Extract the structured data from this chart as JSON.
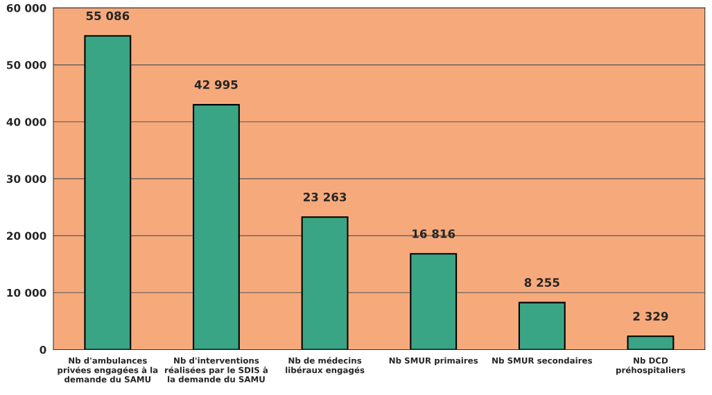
{
  "chart_data": {
    "type": "bar",
    "categories": [
      "Nb d'ambulances\nprivées engagées à la\ndemande du SAMU",
      "Nb d'interventions\nréalisées par le SDIS à\nla demande du SAMU",
      "Nb de médecins\nlibéraux engagés",
      "Nb SMUR primaires",
      "Nb SMUR secondaires",
      "Nb DCD\npréhospitaliers"
    ],
    "values": [
      55086,
      42995,
      23263,
      16816,
      8255,
      2329
    ],
    "value_labels": [
      "55 086",
      "42 995",
      "23 263",
      "16 816",
      "8 255",
      "2 329"
    ],
    "color": "#3aa584",
    "ylim": [
      0,
      60000
    ],
    "yticks": [
      {
        "value": 0,
        "label": "0"
      },
      {
        "value": 10000,
        "label": "10 000"
      },
      {
        "value": 20000,
        "label": "20 000"
      },
      {
        "value": 30000,
        "label": "30 000"
      },
      {
        "value": 40000,
        "label": "40 000"
      },
      {
        "value": 50000,
        "label": "50 000"
      },
      {
        "value": 60000,
        "label": "60 000"
      }
    ],
    "grid": "y"
  }
}
